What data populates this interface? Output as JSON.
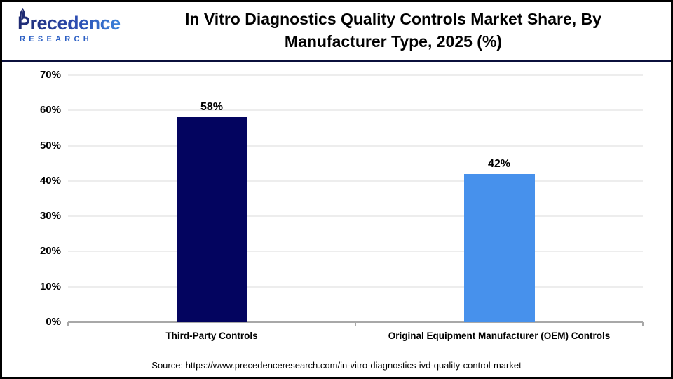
{
  "header": {
    "logo_line1": "Precedence",
    "logo_line2": "RESEARCH",
    "title_lines": [
      "In Vitro Diagnostics Quality Controls Market Share, By",
      "Manufacturer Type, 2025 (%)"
    ]
  },
  "chart_data": {
    "type": "bar",
    "title": "In Vitro Diagnostics Quality Controls Market Share, By Manufacturer Type, 2025 (%)",
    "categories": [
      "Third-Party Controls",
      "Original Equipment Manufacturer (OEM) Controls"
    ],
    "values": [
      58,
      42
    ],
    "value_labels": [
      "58%",
      "42%"
    ],
    "bar_colors": [
      "#03045f",
      "#4791ec"
    ],
    "xlabel": "",
    "ylabel": "",
    "ylim": [
      0,
      70
    ],
    "ytick_step": 10,
    "ytick_labels": [
      "0%",
      "10%",
      "20%",
      "30%",
      "40%",
      "50%",
      "60%",
      "70%"
    ],
    "grid": true,
    "legend": false
  },
  "footer": {
    "source": "Source: https://www.precedenceresearch.com/in-vitro-diagnostics-ivd-quality-control-market"
  },
  "colors": {
    "header_rule": "#0b103c",
    "gridline": "#ededed",
    "axis_line": "#a8a8a8",
    "logo_navy": "#1f2a72",
    "logo_blue": "#3b86dd",
    "text": "#000000",
    "background": "#ffffff"
  }
}
